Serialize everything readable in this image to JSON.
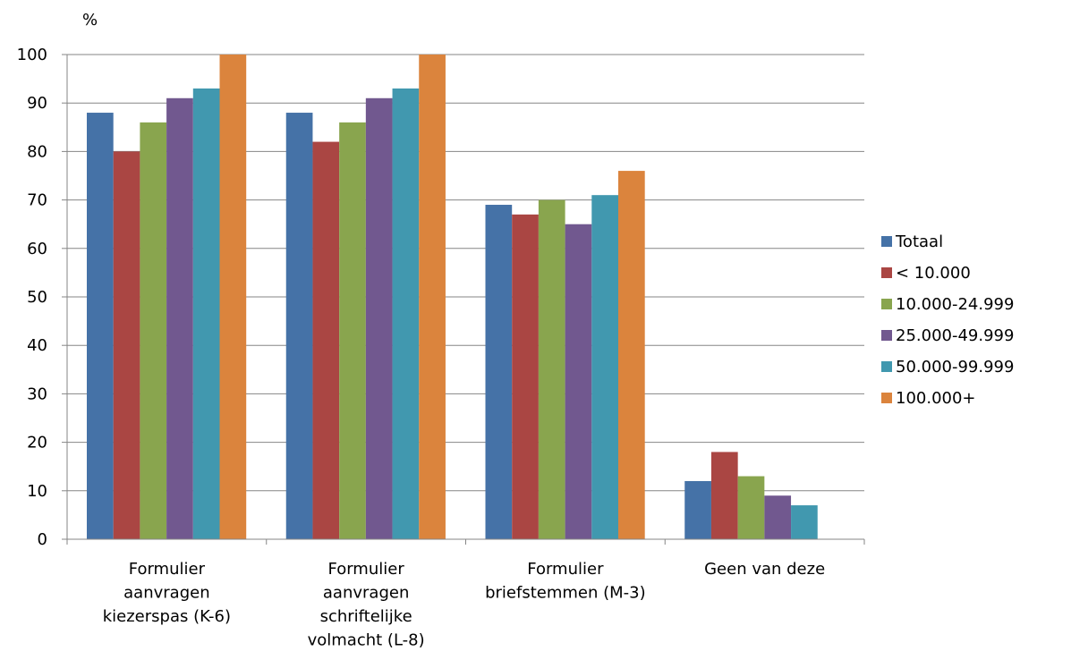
{
  "chart_data": {
    "type": "bar",
    "unit_label": "%",
    "ylim": [
      0,
      100
    ],
    "yticks": [
      0,
      10,
      20,
      30,
      40,
      50,
      60,
      70,
      80,
      90,
      100
    ],
    "grid": true,
    "legend_position": "right",
    "categories": [
      [
        "Formulier",
        "aanvragen",
        "kiezerspas (K-6)"
      ],
      [
        "Formulier",
        "aanvragen",
        "schriftelijke",
        "volmacht (L-8)"
      ],
      [
        "Formulier",
        "briefstemmen (M-3)"
      ],
      [
        "Geen van deze"
      ]
    ],
    "series": [
      {
        "name": "Totaal",
        "color": "#4572A7",
        "values": [
          88,
          88,
          69,
          12
        ]
      },
      {
        "name": "< 10.000",
        "color": "#AA4643",
        "values": [
          80,
          82,
          67,
          18
        ]
      },
      {
        "name": "10.000-24.999",
        "color": "#89A54E",
        "values": [
          86,
          86,
          70,
          13
        ]
      },
      {
        "name": "25.000-49.999",
        "color": "#71588F",
        "values": [
          91,
          91,
          65,
          9
        ]
      },
      {
        "name": "50.000-99.999",
        "color": "#4198AF",
        "values": [
          93,
          93,
          71,
          7
        ]
      },
      {
        "name": "100.000+",
        "color": "#DB843D",
        "values": [
          100,
          100,
          76,
          null
        ]
      }
    ]
  }
}
